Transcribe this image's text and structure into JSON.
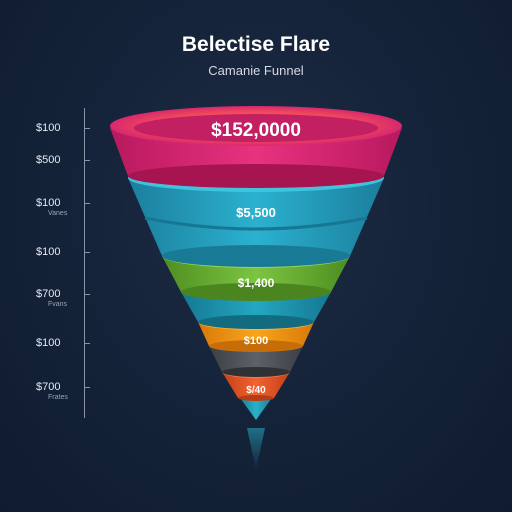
{
  "chart_data": {
    "type": "funnel",
    "title": "Belectise Flare",
    "subtitle": "Camanie Funnel",
    "axis_labels": [
      {
        "label": "$100",
        "sub": ""
      },
      {
        "label": "$500",
        "sub": ""
      },
      {
        "label": "$100",
        "sub": "Vanes"
      },
      {
        "label": "$100",
        "sub": ""
      },
      {
        "label": "$700",
        "sub": "Fvans"
      },
      {
        "label": "$100",
        "sub": ""
      },
      {
        "label": "$700",
        "sub": "Frates"
      }
    ],
    "stages": [
      {
        "label": "$152,0000",
        "color": "#e8327f"
      },
      {
        "label": "$5,500",
        "color": "#2bb1cf"
      },
      {
        "label": "$1,400",
        "color": "#7cc540"
      },
      {
        "label": "$100",
        "color": "#f9a51a"
      },
      {
        "label": "$/40",
        "color": "#f2622e"
      }
    ]
  }
}
